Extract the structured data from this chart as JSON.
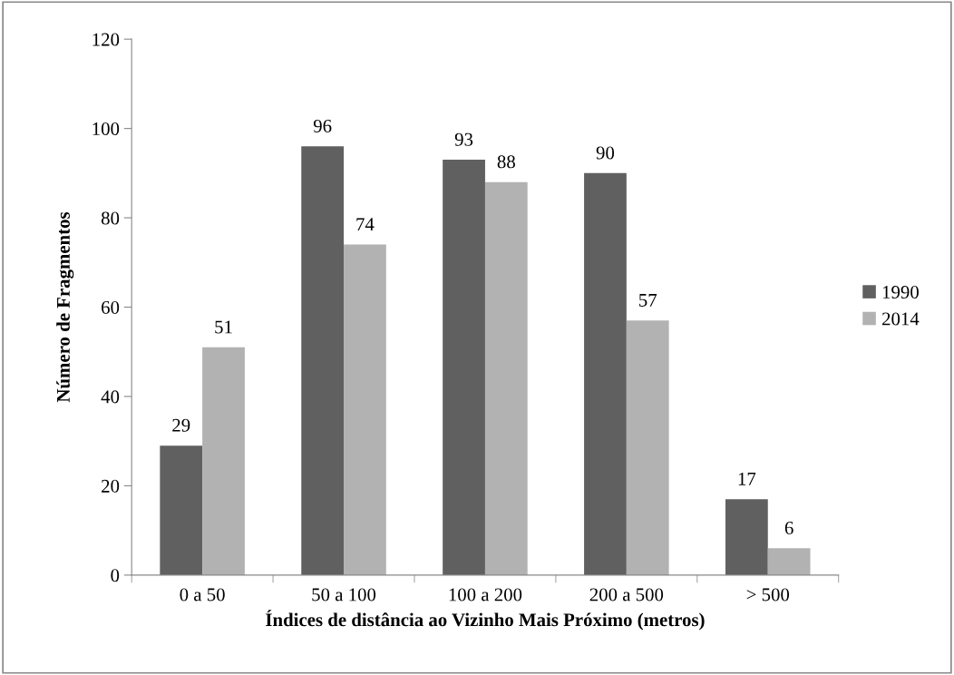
{
  "chart_data": {
    "type": "bar",
    "xlabel": "Índices de distância ao Vizinho Mais Próximo (metros)",
    "ylabel": "Número de Fragmentos",
    "categories": [
      "0 a 50",
      "50 a 100",
      "100 a 200",
      "200 a 500",
      "> 500"
    ],
    "series": [
      {
        "name": "1990",
        "color": "#606060",
        "values": [
          29,
          96,
          93,
          90,
          17
        ]
      },
      {
        "name": "2014",
        "color": "#b2b2b2",
        "values": [
          51,
          74,
          88,
          57,
          6
        ]
      }
    ],
    "ylim": [
      0,
      120
    ],
    "yticks": [
      0,
      20,
      40,
      60,
      80,
      100,
      120
    ],
    "data_labels": true,
    "legend": "right",
    "grid": false
  }
}
